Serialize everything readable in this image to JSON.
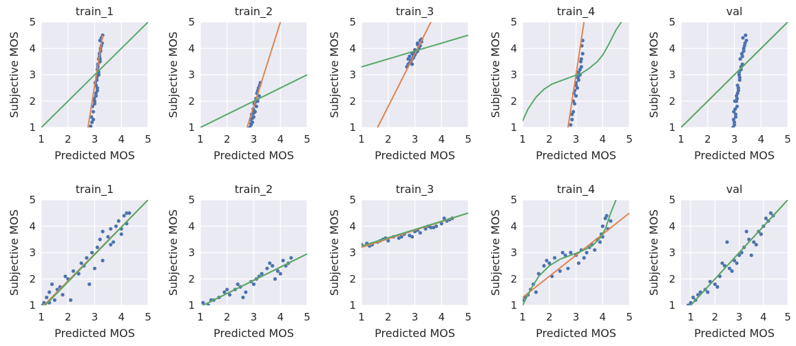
{
  "colors": {
    "points": "#4c72b0",
    "fit_orange": "#dd8452",
    "fit_green": "#55a868"
  },
  "chart_data": [
    {
      "type": "scatter",
      "title": "train_1",
      "xlabel": "Predicted MOS",
      "ylabel": "Subjective MOS",
      "xlim": [
        1,
        5
      ],
      "ylim": [
        1,
        5
      ],
      "xticks": [
        "1",
        "2",
        "3",
        "4",
        "5"
      ],
      "yticks": [
        "1",
        "2",
        "3",
        "4",
        "5"
      ],
      "grid": true,
      "points": {
        "x": [
          2.85,
          2.9,
          2.88,
          2.95,
          2.92,
          3.0,
          3.05,
          2.98,
          3.1,
          3.02,
          3.08,
          3.15,
          3.12,
          3.2,
          3.18,
          3.1,
          3.22,
          3.05,
          3.15,
          3.25,
          3.2,
          3.12,
          3.08,
          3.18,
          3.25,
          3.3,
          3.22,
          3.15,
          3.28,
          3.2,
          2.95,
          3.0,
          3.1,
          3.05,
          3.15
        ],
        "y": [
          1.05,
          1.2,
          1.4,
          1.6,
          1.8,
          2.0,
          2.3,
          2.1,
          2.5,
          2.7,
          2.9,
          3.1,
          3.3,
          3.5,
          3.7,
          3.2,
          3.9,
          2.6,
          3.6,
          4.1,
          4.3,
          3.4,
          2.8,
          3.8,
          4.4,
          4.5,
          4.0,
          3.0,
          4.2,
          3.6,
          1.3,
          1.9,
          2.4,
          2.2,
          3.0
        ]
      },
      "lines": [
        {
          "color": "#dd8452",
          "x": [
            2.75,
            3.3
          ],
          "y": [
            1.0,
            4.5
          ]
        },
        {
          "color": "#55a868",
          "x": [
            1,
            5
          ],
          "y": [
            1,
            5
          ]
        }
      ]
    },
    {
      "type": "scatter",
      "title": "train_2",
      "xlabel": "Predicted MOS",
      "ylabel": "Subjective MOS",
      "xlim": [
        1,
        5
      ],
      "ylim": [
        1,
        5
      ],
      "xticks": [
        "1",
        "2",
        "3",
        "4",
        "5"
      ],
      "yticks": [
        "1",
        "2",
        "3",
        "4",
        "5"
      ],
      "grid": true,
      "points": {
        "x": [
          2.85,
          2.9,
          2.95,
          2.88,
          3.0,
          2.92,
          3.05,
          2.98,
          3.1,
          3.02,
          3.15,
          3.08,
          3.2,
          3.12,
          3.0,
          2.95,
          3.05,
          3.1,
          3.18,
          3.25,
          3.22,
          2.9,
          3.0,
          3.15
        ],
        "y": [
          1.0,
          1.1,
          1.2,
          1.3,
          1.4,
          1.5,
          1.6,
          1.7,
          1.8,
          1.9,
          2.0,
          2.1,
          2.2,
          2.3,
          1.65,
          1.35,
          1.95,
          2.05,
          2.5,
          2.7,
          2.6,
          1.15,
          1.55,
          2.4
        ]
      },
      "lines": [
        {
          "color": "#dd8452",
          "x": [
            2.75,
            4.0
          ],
          "y": [
            1.0,
            5.0
          ]
        },
        {
          "color": "#55a868",
          "x": [
            1,
            5
          ],
          "y": [
            1,
            3
          ]
        }
      ]
    },
    {
      "type": "scatter",
      "title": "train_3",
      "xlabel": "Predicted MOS",
      "ylabel": "Subjective MOS",
      "xlim": [
        1,
        5
      ],
      "ylim": [
        1,
        5
      ],
      "xticks": [
        "1",
        "2",
        "3",
        "4",
        "5"
      ],
      "yticks": [
        "1",
        "2",
        "3",
        "4",
        "5"
      ],
      "grid": true,
      "points": {
        "x": [
          2.7,
          2.75,
          2.8,
          2.85,
          2.9,
          2.95,
          3.0,
          3.05,
          3.1,
          3.15,
          3.2,
          3.25,
          2.8,
          2.9,
          3.0,
          3.1,
          3.2,
          2.75,
          2.85,
          2.95,
          3.05,
          3.15,
          3.25,
          2.9,
          3.0,
          3.1
        ],
        "y": [
          3.3,
          3.4,
          3.45,
          3.55,
          3.6,
          3.7,
          3.75,
          3.85,
          3.9,
          4.0,
          4.1,
          4.25,
          3.7,
          3.8,
          3.95,
          4.15,
          4.3,
          3.6,
          3.5,
          3.65,
          3.9,
          4.05,
          4.35,
          3.4,
          3.85,
          4.2
        ]
      },
      "lines": [
        {
          "color": "#dd8452",
          "x": [
            1.6,
            3.6
          ],
          "y": [
            1.0,
            5.0
          ]
        },
        {
          "color": "#55a868",
          "x": [
            1,
            5
          ],
          "y": [
            3.3,
            4.5
          ]
        }
      ]
    },
    {
      "type": "scatter",
      "title": "train_4",
      "xlabel": "Predicted MOS",
      "ylabel": "Subjective MOS",
      "xlim": [
        1,
        5
      ],
      "ylim": [
        1,
        5
      ],
      "xticks": [
        "1",
        "2",
        "3",
        "4",
        "5"
      ],
      "yticks": [
        "1",
        "2",
        "3",
        "4",
        "5"
      ],
      "grid": true,
      "points": {
        "x": [
          2.8,
          2.85,
          2.9,
          2.95,
          3.0,
          3.05,
          3.1,
          3.15,
          3.2,
          3.25,
          2.9,
          3.0,
          3.1,
          3.2,
          2.95,
          3.05,
          3.15,
          3.22,
          2.85,
          3.0,
          3.1,
          3.18,
          3.25,
          2.92,
          3.08
        ],
        "y": [
          1.1,
          1.3,
          1.6,
          1.9,
          2.2,
          2.5,
          2.8,
          3.0,
          3.3,
          3.8,
          2.0,
          2.7,
          3.1,
          3.6,
          2.4,
          2.9,
          3.2,
          4.1,
          1.5,
          2.6,
          3.0,
          3.5,
          4.3,
          2.3,
          2.9
        ]
      },
      "lines": [
        {
          "color": "#dd8452",
          "x": [
            2.7,
            3.3
          ],
          "y": [
            1.0,
            5.0
          ]
        },
        {
          "color": "#55a868",
          "x": [
            1.0,
            1.2,
            1.5,
            1.8,
            2.1,
            2.5,
            2.9,
            3.2,
            3.5,
            3.8,
            4.0,
            4.2,
            4.5,
            4.7
          ],
          "y": [
            1.25,
            1.7,
            2.15,
            2.45,
            2.65,
            2.8,
            2.95,
            3.05,
            3.25,
            3.5,
            3.75,
            4.1,
            4.7,
            5.0
          ]
        }
      ]
    },
    {
      "type": "scatter",
      "title": "val",
      "xlabel": "Predicted MOS",
      "ylabel": "Subjective MOS",
      "xlim": [
        1,
        5
      ],
      "ylim": [
        1,
        5
      ],
      "xticks": [
        "1",
        "2",
        "3",
        "4",
        "5"
      ],
      "yticks": [
        "1",
        "2",
        "3",
        "4",
        "5"
      ],
      "grid": true,
      "points": {
        "x": [
          2.95,
          3.0,
          3.05,
          2.98,
          3.1,
          3.02,
          3.08,
          3.15,
          3.12,
          3.2,
          3.18,
          3.25,
          3.3,
          3.22,
          3.28,
          3.35,
          3.4,
          3.32,
          3.15,
          3.05,
          3.0,
          3.1,
          3.2,
          3.3,
          3.38,
          3.42,
          2.97,
          3.03,
          3.12,
          3.25,
          3.35,
          3.45,
          3.18,
          3.08
        ],
        "y": [
          1.0,
          1.2,
          1.4,
          1.6,
          1.8,
          2.0,
          2.2,
          2.4,
          2.6,
          2.8,
          3.0,
          3.2,
          3.4,
          3.6,
          3.8,
          4.0,
          4.2,
          4.4,
          2.5,
          1.5,
          1.1,
          2.1,
          2.9,
          3.7,
          4.1,
          4.5,
          1.3,
          1.7,
          2.3,
          3.3,
          3.9,
          4.3,
          3.1,
          2.0
        ]
      },
      "lines": [
        {
          "color": "#dd8452",
          "x": [
            1,
            5
          ],
          "y": [
            1,
            5
          ]
        },
        {
          "color": "#55a868",
          "x": [
            1,
            5
          ],
          "y": [
            1,
            5
          ]
        }
      ]
    },
    {
      "type": "scatter",
      "title": "train_1",
      "xlabel": "Predicted MOS",
      "ylabel": "Subjective MOS",
      "xlim": [
        1,
        5
      ],
      "ylim": [
        1,
        5
      ],
      "xticks": [
        "1",
        "2",
        "3",
        "4",
        "5"
      ],
      "yticks": [
        "1",
        "2",
        "3",
        "4",
        "5"
      ],
      "grid": true,
      "points": {
        "x": [
          1.0,
          1.1,
          1.2,
          1.3,
          1.4,
          1.5,
          1.6,
          1.8,
          2.0,
          2.2,
          2.4,
          2.5,
          2.7,
          2.9,
          3.0,
          3.1,
          3.2,
          3.3,
          3.5,
          3.6,
          3.7,
          3.8,
          3.9,
          4.0,
          4.1,
          4.2,
          4.3,
          1.3,
          1.7,
          2.1,
          2.6,
          3.3,
          3.6,
          4.0,
          4.2,
          1.9,
          2.8
        ],
        "y": [
          1.0,
          1.1,
          1.3,
          1.5,
          1.8,
          1.2,
          1.6,
          1.4,
          2.0,
          2.3,
          2.2,
          2.6,
          2.8,
          3.0,
          2.4,
          3.2,
          3.5,
          2.7,
          3.6,
          3.9,
          3.4,
          4.0,
          4.2,
          3.7,
          4.4,
          4.1,
          4.5,
          1.1,
          1.7,
          1.2,
          2.5,
          3.8,
          3.3,
          3.9,
          4.5,
          2.1,
          1.8
        ]
      },
      "lines": [
        {
          "color": "#dd8452",
          "x": [
            1,
            5
          ],
          "y": [
            0.9,
            5.0
          ]
        },
        {
          "color": "#55a868",
          "x": [
            1,
            5
          ],
          "y": [
            0.85,
            5.0
          ]
        }
      ]
    },
    {
      "type": "scatter",
      "title": "train_2",
      "xlabel": "Predicted MOS",
      "ylabel": "Subjective MOS",
      "xlim": [
        1,
        5
      ],
      "ylim": [
        1,
        5
      ],
      "xticks": [
        "1",
        "2",
        "3",
        "4",
        "5"
      ],
      "yticks": [
        "1",
        "2",
        "3",
        "4",
        "5"
      ],
      "grid": true,
      "points": {
        "x": [
          1.1,
          1.3,
          1.5,
          1.7,
          1.9,
          2.1,
          2.3,
          2.5,
          2.7,
          2.9,
          3.1,
          3.3,
          3.5,
          3.7,
          3.9,
          4.1,
          4.3,
          4.4,
          1.4,
          2.0,
          2.6,
          3.2,
          3.8,
          4.2,
          3.0,
          3.6,
          4.0,
          2.4
        ],
        "y": [
          1.1,
          1.0,
          1.2,
          1.3,
          1.5,
          1.4,
          1.6,
          1.7,
          1.5,
          1.9,
          2.0,
          2.2,
          2.4,
          2.5,
          2.3,
          2.7,
          2.6,
          2.8,
          1.2,
          1.6,
          1.3,
          2.1,
          2.0,
          2.5,
          1.8,
          2.6,
          2.2,
          1.8
        ]
      },
      "lines": [
        {
          "color": "#dd8452",
          "x": [
            1,
            5
          ],
          "y": [
            0.95,
            2.95
          ]
        },
        {
          "color": "#55a868",
          "x": [
            1,
            5
          ],
          "y": [
            0.95,
            2.95
          ]
        }
      ]
    },
    {
      "type": "scatter",
      "title": "train_3",
      "xlabel": "Predicted MOS",
      "ylabel": "Subjective MOS",
      "xlim": [
        1,
        5
      ],
      "ylim": [
        1,
        5
      ],
      "xticks": [
        "1",
        "2",
        "3",
        "4",
        "5"
      ],
      "yticks": [
        "1",
        "2",
        "3",
        "4",
        "5"
      ],
      "grid": true,
      "points": {
        "x": [
          1.0,
          1.2,
          1.4,
          1.6,
          1.8,
          2.0,
          2.2,
          2.4,
          2.6,
          2.8,
          3.0,
          3.2,
          3.4,
          3.6,
          3.8,
          4.0,
          4.2,
          4.4,
          1.3,
          1.9,
          2.5,
          3.1,
          3.7,
          4.1,
          2.9,
          3.5,
          4.3,
          1.7
        ],
        "y": [
          3.3,
          3.35,
          3.3,
          3.4,
          3.5,
          3.45,
          3.6,
          3.55,
          3.7,
          3.65,
          3.8,
          3.75,
          3.9,
          3.95,
          4.0,
          4.1,
          4.2,
          4.3,
          3.25,
          3.55,
          3.6,
          3.85,
          3.95,
          4.3,
          3.6,
          4.0,
          4.25,
          3.45
        ]
      },
      "lines": [
        {
          "color": "#dd8452",
          "x": [
            1,
            5
          ],
          "y": [
            3.2,
            4.5
          ]
        },
        {
          "color": "#55a868",
          "x": [
            1,
            5
          ],
          "y": [
            3.25,
            4.5
          ]
        }
      ]
    },
    {
      "type": "scatter",
      "title": "train_4",
      "xlabel": "Predicted MOS",
      "ylabel": "Subjective MOS",
      "xlim": [
        1,
        5
      ],
      "ylim": [
        1,
        5
      ],
      "xticks": [
        "1",
        "2",
        "3",
        "4",
        "5"
      ],
      "yticks": [
        "1",
        "2",
        "3",
        "4",
        "5"
      ],
      "grid": true,
      "points": {
        "x": [
          1.0,
          1.1,
          1.2,
          1.3,
          1.4,
          1.6,
          1.8,
          2.0,
          2.2,
          2.4,
          2.6,
          2.8,
          3.0,
          3.2,
          3.4,
          3.6,
          3.8,
          3.9,
          4.0,
          4.1,
          4.2,
          4.3,
          1.5,
          2.1,
          2.7,
          3.3,
          3.7,
          4.0,
          1.9,
          2.5,
          3.1,
          3.5,
          3.95,
          4.15
        ],
        "y": [
          1.2,
          1.3,
          1.4,
          1.6,
          1.8,
          2.2,
          2.5,
          2.6,
          2.8,
          2.3,
          2.9,
          3.0,
          2.9,
          3.1,
          3.0,
          3.3,
          3.5,
          3.4,
          4.0,
          4.3,
          3.9,
          4.2,
          1.5,
          2.1,
          2.4,
          2.8,
          3.1,
          3.6,
          2.7,
          3.0,
          2.6,
          3.2,
          3.7,
          4.4
        ]
      },
      "lines": [
        {
          "color": "#dd8452",
          "x": [
            1,
            5
          ],
          "y": [
            1.3,
            4.5
          ]
        },
        {
          "color": "#55a868",
          "x": [
            1.0,
            1.3,
            1.6,
            2.0,
            2.4,
            2.8,
            3.2,
            3.6,
            3.9,
            4.1,
            4.3,
            4.5
          ],
          "y": [
            1.0,
            1.6,
            2.1,
            2.5,
            2.75,
            2.9,
            3.05,
            3.25,
            3.55,
            3.9,
            4.5,
            5.0
          ]
        }
      ]
    },
    {
      "type": "scatter",
      "title": "val",
      "xlabel": "Predicted MOS",
      "ylabel": "Subjective MOS",
      "xlim": [
        0.6,
        5
      ],
      "ylim": [
        1,
        5
      ],
      "xticks": [
        "1",
        "2",
        "3",
        "4",
        "5"
      ],
      "yticks": [
        "1",
        "2",
        "3",
        "4",
        "5"
      ],
      "grid": true,
      "points": {
        "x": [
          0.9,
          1.0,
          1.1,
          1.2,
          1.4,
          1.6,
          1.8,
          2.0,
          2.2,
          2.4,
          2.6,
          2.8,
          3.0,
          3.2,
          3.4,
          3.6,
          3.8,
          4.0,
          4.2,
          4.4,
          1.3,
          1.7,
          2.3,
          2.7,
          3.1,
          3.5,
          3.9,
          4.3,
          2.1,
          2.5,
          2.9,
          3.3,
          3.7,
          4.1
        ],
        "y": [
          1.0,
          1.1,
          1.3,
          1.2,
          1.5,
          1.6,
          1.9,
          1.8,
          2.1,
          2.5,
          2.4,
          2.7,
          2.9,
          3.2,
          3.5,
          3.4,
          3.8,
          4.0,
          4.2,
          4.4,
          1.4,
          1.5,
          2.6,
          2.3,
          3.0,
          2.9,
          3.7,
          4.5,
          1.7,
          3.4,
          2.6,
          3.8,
          3.3,
          4.3
        ]
      },
      "lines": [
        {
          "color": "#dd8452",
          "x": [
            0.9,
            5
          ],
          "y": [
            0.9,
            5.0
          ]
        },
        {
          "color": "#55a868",
          "x": [
            0.9,
            5
          ],
          "y": [
            0.9,
            5.0
          ]
        }
      ]
    }
  ]
}
